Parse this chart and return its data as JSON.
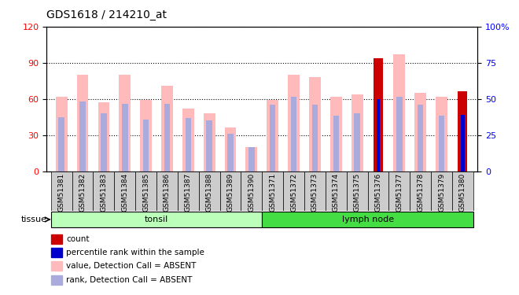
{
  "title": "GDS1618 / 214210_at",
  "samples": [
    "GSM51381",
    "GSM51382",
    "GSM51383",
    "GSM51384",
    "GSM51385",
    "GSM51386",
    "GSM51387",
    "GSM51388",
    "GSM51389",
    "GSM51390",
    "GSM51371",
    "GSM51372",
    "GSM51373",
    "GSM51374",
    "GSM51375",
    "GSM51376",
    "GSM51377",
    "GSM51378",
    "GSM51379",
    "GSM51380"
  ],
  "groups": [
    {
      "label": "tonsil",
      "start": 0,
      "end": 9,
      "color": "#bbffbb"
    },
    {
      "label": "lymph node",
      "start": 10,
      "end": 19,
      "color": "#44dd44"
    }
  ],
  "value_bars": [
    62,
    80,
    57,
    80,
    59,
    71,
    52,
    48,
    36,
    20,
    59,
    80,
    78,
    62,
    64,
    0,
    97,
    65,
    62,
    0
  ],
  "rank_bars": [
    45,
    58,
    48,
    56,
    43,
    56,
    44,
    42,
    31,
    20,
    55,
    62,
    55,
    46,
    48,
    0,
    62,
    55,
    46,
    0
  ],
  "count_bars": [
    0,
    0,
    0,
    0,
    0,
    0,
    0,
    0,
    0,
    0,
    0,
    0,
    0,
    0,
    0,
    94,
    0,
    0,
    0,
    66
  ],
  "count_rank_bars": [
    0,
    0,
    0,
    0,
    0,
    0,
    0,
    0,
    0,
    0,
    0,
    0,
    0,
    0,
    0,
    60,
    0,
    0,
    0,
    47
  ],
  "value_color": "#ffbbbb",
  "rank_color": "#aaaadd",
  "count_color": "#cc0000",
  "count_rank_color": "#0000cc",
  "ylim_left": [
    0,
    120
  ],
  "ylim_right": [
    0,
    100
  ],
  "yticks_left": [
    0,
    30,
    60,
    90,
    120
  ],
  "yticks_right": [
    0,
    25,
    50,
    75,
    100
  ],
  "tissue_label": "tissue",
  "legend_items": [
    {
      "color": "#cc0000",
      "label": "count"
    },
    {
      "color": "#0000cc",
      "label": "percentile rank within the sample"
    },
    {
      "color": "#ffbbbb",
      "label": "value, Detection Call = ABSENT"
    },
    {
      "color": "#aaaadd",
      "label": "rank, Detection Call = ABSENT"
    }
  ]
}
